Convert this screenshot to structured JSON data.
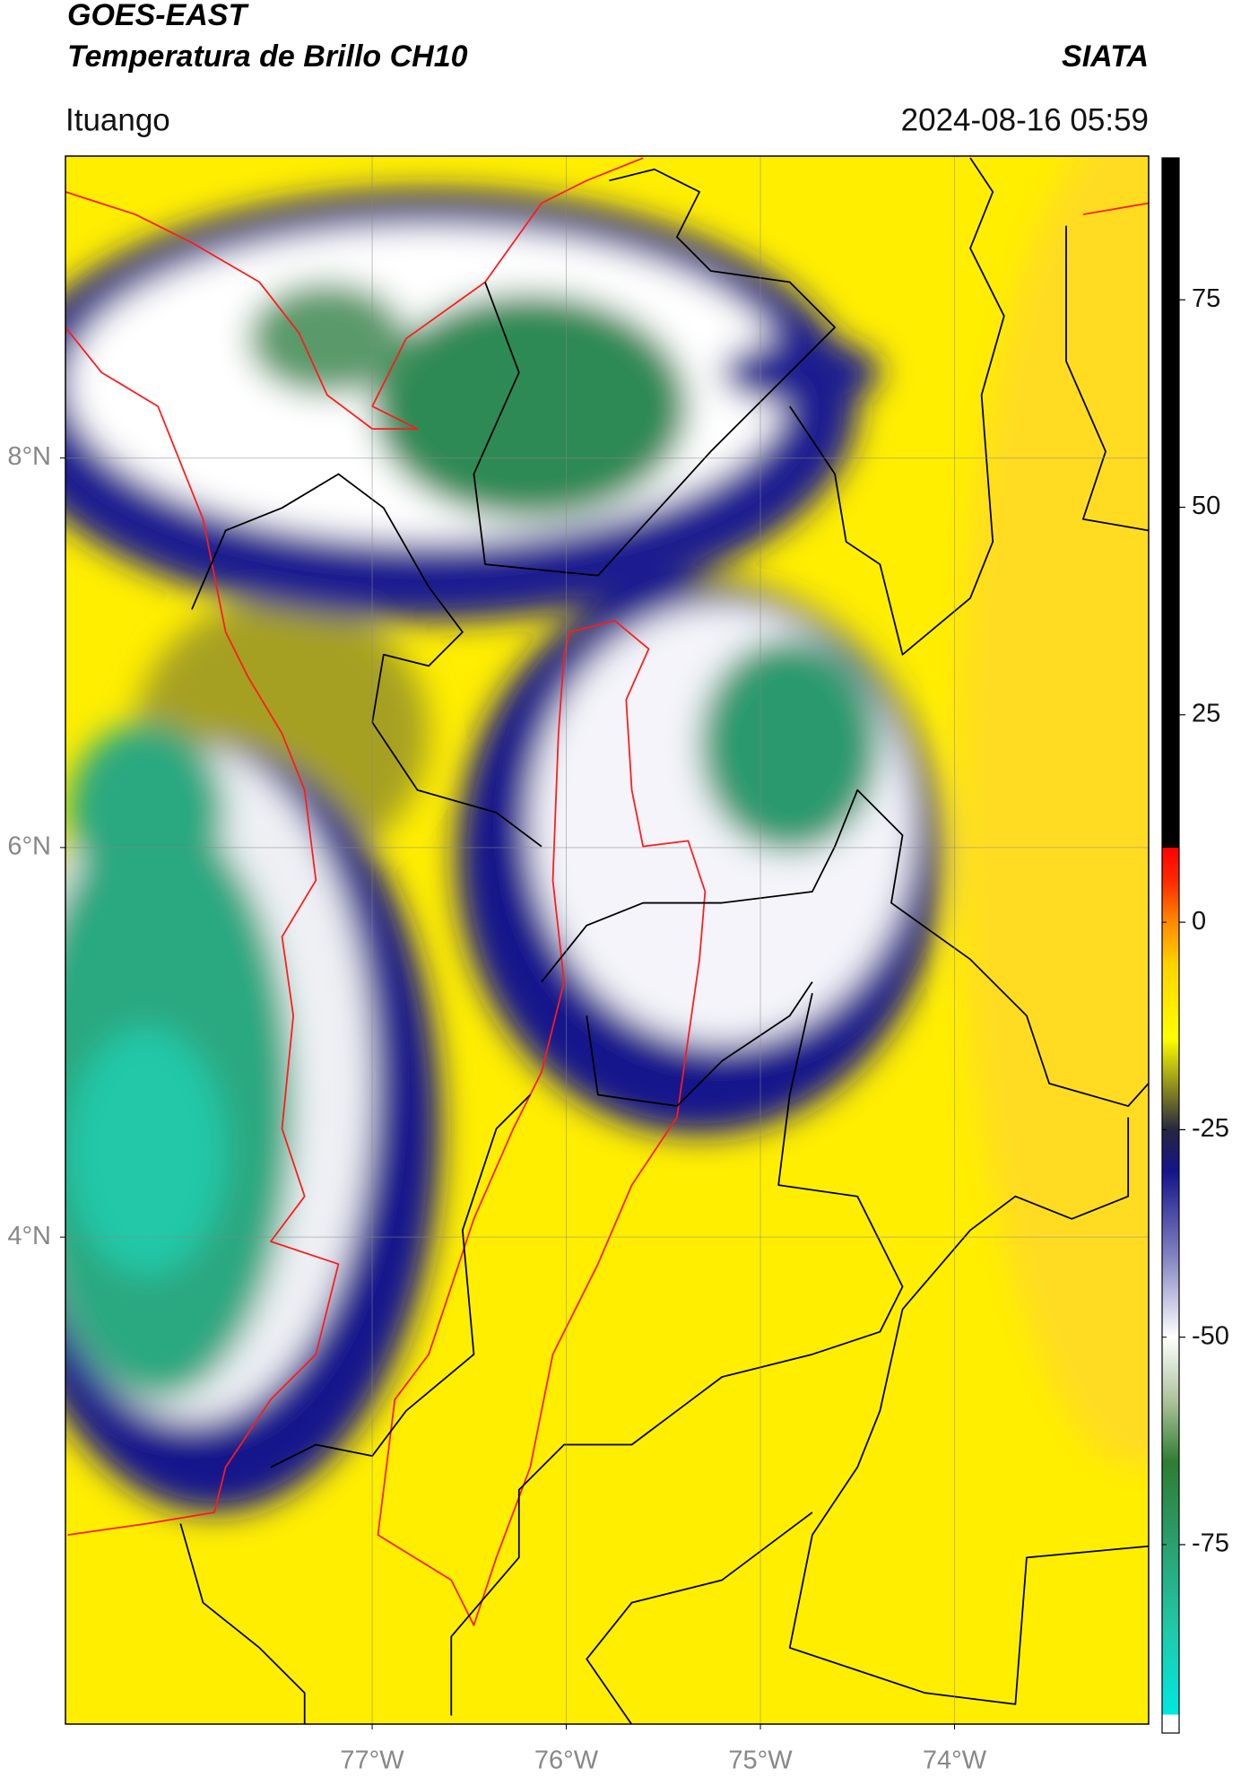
{
  "chart_data": {
    "type": "map",
    "title": "GOES-EAST",
    "subtitle": "Temperatura de Brillo CH10",
    "source": "SIATA",
    "location": "Ituango",
    "datetime": "2024-08-16 05:59",
    "xlim": [
      -78.58,
      -73.0
    ],
    "ylim": [
      1.5,
      9.55
    ],
    "xticks": [
      {
        "value": -77,
        "label": "77°W"
      },
      {
        "value": -76,
        "label": "76°W"
      },
      {
        "value": -75,
        "label": "75°W"
      },
      {
        "value": -74,
        "label": "74°W"
      }
    ],
    "yticks": [
      {
        "value": 4,
        "label": "4°N"
      },
      {
        "value": 6,
        "label": "6°N"
      },
      {
        "value": 8,
        "label": "8°N"
      }
    ],
    "grid": true,
    "colorbar": {
      "lim": [
        -97.7,
        92.1
      ],
      "ticks": [
        -75,
        -50,
        -25,
        0,
        25,
        50,
        75
      ],
      "colormap": [
        {
          "value": -97.7,
          "color": "#ffffff"
        },
        {
          "value": -95.5,
          "color": "#ffffff"
        },
        {
          "value": -95.5,
          "color": "#00e8e0"
        },
        {
          "value": -85,
          "color": "#20c8a8"
        },
        {
          "value": -75,
          "color": "#2aa070"
        },
        {
          "value": -65,
          "color": "#2e7d32"
        },
        {
          "value": -58,
          "color": "#a8c098"
        },
        {
          "value": -50,
          "color": "#ffffff"
        },
        {
          "value": -40,
          "color": "#7f80c0"
        },
        {
          "value": -30,
          "color": "#14148c"
        },
        {
          "value": -25,
          "color": "#262640"
        },
        {
          "value": -20,
          "color": "#8a8a20"
        },
        {
          "value": -14,
          "color": "#ffff00"
        },
        {
          "value": -5,
          "color": "#ffd200"
        },
        {
          "value": 0,
          "color": "#ff8a00"
        },
        {
          "value": 5,
          "color": "#ff2a00"
        },
        {
          "value": 9,
          "color": "#ff0000"
        },
        {
          "value": 9,
          "color": "#000000"
        },
        {
          "value": 92.1,
          "color": "#000000"
        }
      ]
    }
  }
}
